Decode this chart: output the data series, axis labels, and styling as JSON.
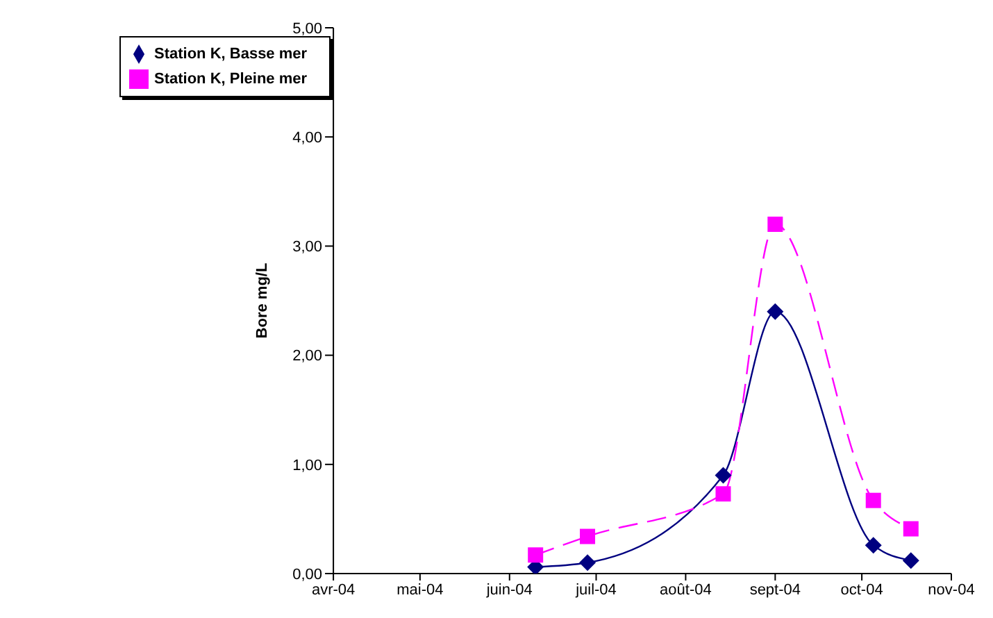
{
  "chart_data": {
    "type": "line",
    "ylabel": "Bore mg/L",
    "x": [
      "2004-06-10",
      "2004-06-28",
      "2004-08-14",
      "2004-09-01",
      "2004-10-05",
      "2004-10-18"
    ],
    "series": [
      {
        "name": "Station K, Basse mer",
        "color": "#000080",
        "marker": "diamond",
        "line_style": "solid",
        "values": [
          0.06,
          0.1,
          0.9,
          2.4,
          0.26,
          0.12
        ]
      },
      {
        "name": "Station K, Pleine mer",
        "color": "#ff00ff",
        "marker": "square",
        "line_style": "dashed",
        "values": [
          0.17,
          0.34,
          0.73,
          3.2,
          0.67,
          0.41
        ]
      }
    ],
    "xlim": [
      "2004-04-01",
      "2004-11-01"
    ],
    "xticks": [
      {
        "value": "2004-04-01",
        "label": "avr-04"
      },
      {
        "value": "2004-05-01",
        "label": "mai-04"
      },
      {
        "value": "2004-06-01",
        "label": "juin-04"
      },
      {
        "value": "2004-07-01",
        "label": "juil-04"
      },
      {
        "value": "2004-08-01",
        "label": "août-04"
      },
      {
        "value": "2004-09-01",
        "label": "sept-04"
      },
      {
        "value": "2004-10-01",
        "label": "oct-04"
      },
      {
        "value": "2004-11-01",
        "label": "nov-04"
      }
    ],
    "ylim": [
      0,
      5
    ],
    "yticks": [
      {
        "value": 0,
        "label": "0,00"
      },
      {
        "value": 1,
        "label": "1,00"
      },
      {
        "value": 2,
        "label": "2,00"
      },
      {
        "value": 3,
        "label": "3,00"
      },
      {
        "value": 4,
        "label": "4,00"
      },
      {
        "value": 5,
        "label": "5,00"
      }
    ],
    "grid": false,
    "legend": "top left"
  }
}
